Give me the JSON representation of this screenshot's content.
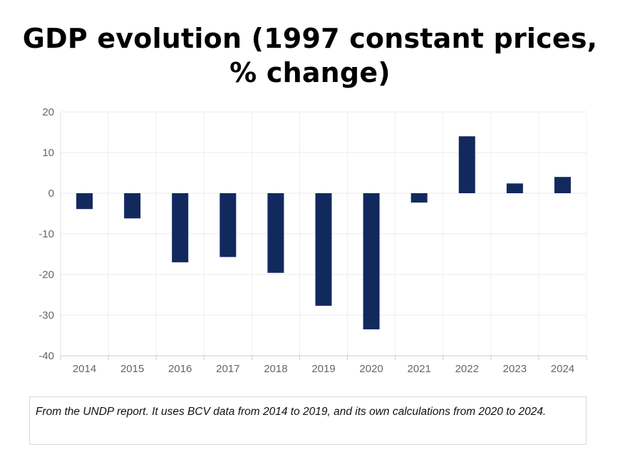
{
  "chart_data": {
    "type": "bar",
    "title": "GDP evolution (1997 constant prices, % change)",
    "categories": [
      "2014",
      "2015",
      "2016",
      "2017",
      "2018",
      "2019",
      "2020",
      "2021",
      "2022",
      "2023",
      "2024"
    ],
    "values": [
      -3.9,
      -6.2,
      -17.0,
      -15.7,
      -19.6,
      -27.7,
      -33.5,
      -2.3,
      14.0,
      2.4,
      4.0
    ],
    "ylim": [
      -40,
      20
    ],
    "yticks": [
      20,
      10,
      0,
      -10,
      -20,
      -30,
      -40
    ],
    "xlabel": "",
    "ylabel": "",
    "grid": true,
    "bar_color": "#12295e"
  },
  "caption": "From the UNDP report. It uses BCV data from 2014 to 2019, and its own calculations from 2020 to 2024."
}
